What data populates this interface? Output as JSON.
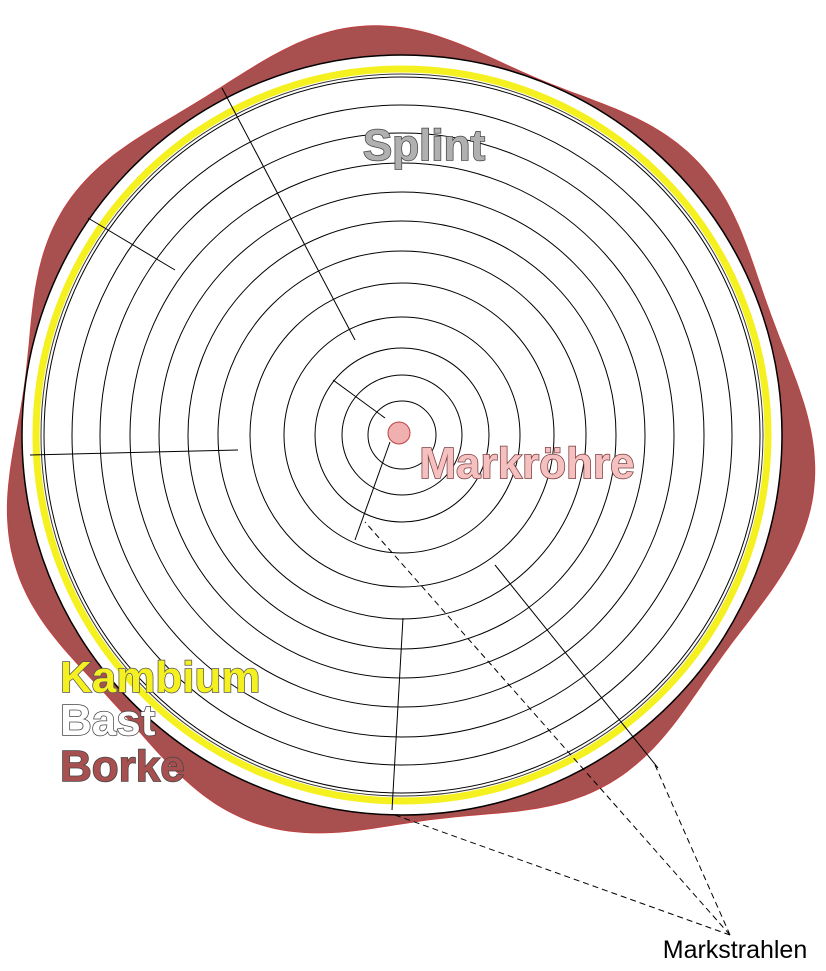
{
  "labels": {
    "splint": "Splint",
    "markroehre": "Markröhre",
    "kambium": "Kambium",
    "bast": "Bast",
    "borke": "Borke",
    "markstrahlen": "Markstrahlen"
  }
}
